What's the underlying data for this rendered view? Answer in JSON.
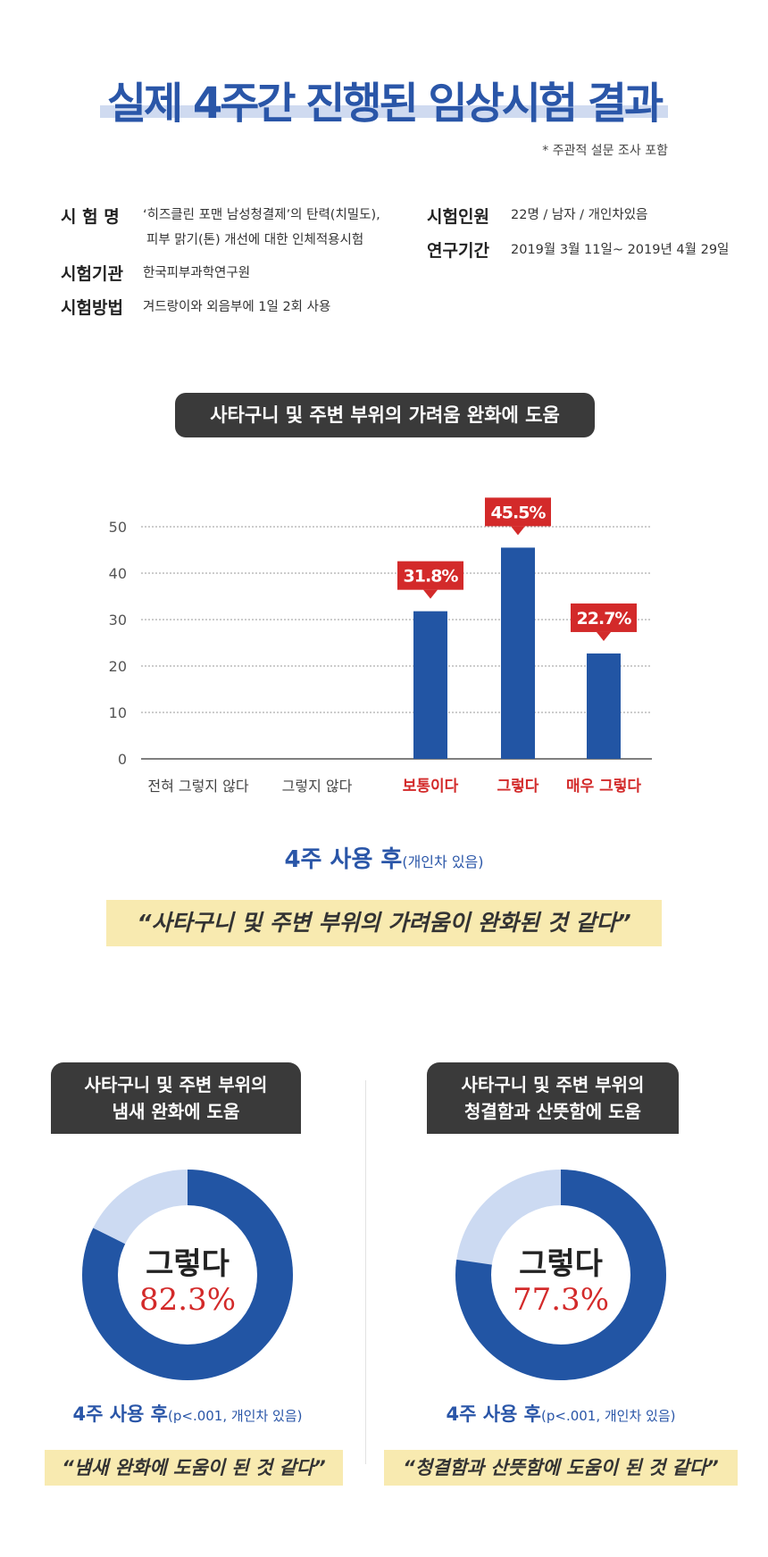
{
  "header": {
    "title": "실제 4주간 진행된 임상시험 결과",
    "note": "* 주관적 설문 조사 포함"
  },
  "info": {
    "name_label": "시 험 명",
    "name_value_1": "‘히즈클린 포맨 남성청결제’의 탄력(치밀도),",
    "name_value_2": "피부 맑기(톤) 개선에 대한 인체적용시험",
    "org_label": "시험기관",
    "org_value": "한국피부과학연구원",
    "method_label": "시험방법",
    "method_value": "겨드랑이와 외음부에 1일 2회 사용",
    "people_label": "시험인원",
    "people_value": "22명 / 남자 / 개인차있음",
    "period_label": "연구기간",
    "period_value": "2019월 3월 11일~ 2019년 4월 29일"
  },
  "chart_section": {
    "pill": "사타구니 및 주변 부위의 가려움 완화에 도움",
    "usage_main": "4주 사용 후",
    "usage_sub": "(개인차 있음)",
    "quote": "“사타구니 및 주변 부위의 가려움이 완화된 것 같다”"
  },
  "chart_data": {
    "type": "bar",
    "categories": [
      "전혀 그렇지 않다",
      "그렇지 않다",
      "보통이다",
      "그렇다",
      "매우 그렇다"
    ],
    "values": [
      0,
      0,
      31.8,
      45.5,
      22.7
    ],
    "data_labels": [
      "",
      "",
      "31.8%",
      "45.5%",
      "22.7%"
    ],
    "highlighted": [
      false,
      false,
      true,
      true,
      true
    ],
    "yticks": [
      "0",
      "10",
      "20",
      "30",
      "40",
      "50"
    ],
    "ylim": [
      0,
      50
    ],
    "grid": true,
    "bar_color": "#2255a4",
    "label_bg_color": "#d32a2a",
    "highlight_text_color": "#d32a2a"
  },
  "donuts": {
    "left": {
      "pill_line1": "사타구니 및 주변 부위의",
      "pill_line2": "냄새 완화에 도움",
      "label": "그렇다",
      "value_text": "82.3%",
      "value": 82.3,
      "usage": "4주 사용 후",
      "usage_sub": "(p<.001, 개인차 있음)",
      "quote": "“냄새 완화에 도움이 된 것 같다”"
    },
    "right": {
      "pill_line1": "사타구니 및 주변 부위의",
      "pill_line2": "청결함과 산뜻함에 도움",
      "label": "그렇다",
      "value_text": "77.3%",
      "value": 77.3,
      "usage": "4주 사용 후",
      "usage_sub": "(p<.001, 개인차 있음)",
      "quote": "“청결함과 산뜻함에 도움이 된 것 같다”"
    }
  },
  "colors": {
    "primary_blue": "#2255a4",
    "light_blue": "#ccdaf2",
    "accent_red": "#d32a2a",
    "quote_bg": "#f8eab0"
  }
}
